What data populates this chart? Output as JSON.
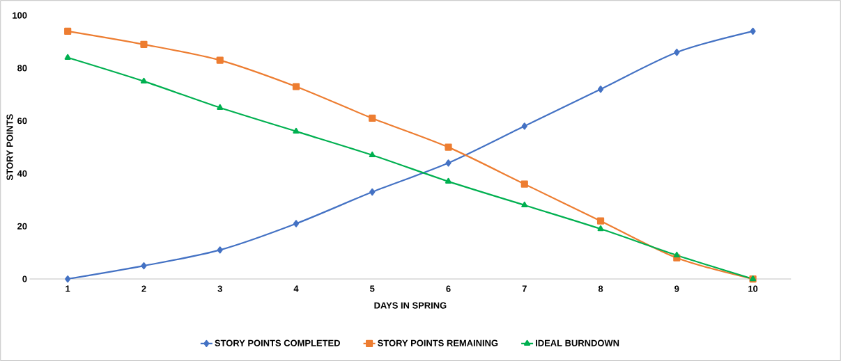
{
  "chart_data": {
    "type": "line",
    "xlabel": "DAYS IN SPRING",
    "ylabel": "STORY POINTS",
    "categories": [
      "1",
      "2",
      "3",
      "4",
      "5",
      "6",
      "7",
      "8",
      "9",
      "10"
    ],
    "series": [
      {
        "name": "STORY POINTS COMPLETED",
        "color": "#4472c4",
        "marker": "diamond",
        "values": [
          0,
          5,
          11,
          21,
          33,
          44,
          58,
          72,
          86,
          94
        ]
      },
      {
        "name": "STORY POINTS REMAINING",
        "color": "#ed7d31",
        "marker": "square",
        "values": [
          94,
          89,
          83,
          73,
          61,
          50,
          36,
          22,
          8,
          0
        ]
      },
      {
        "name": "IDEAL BURNDOWN",
        "color": "#00b050",
        "marker": "triangle",
        "values": [
          84,
          75,
          65,
          56,
          47,
          37,
          28,
          19,
          9,
          0
        ]
      }
    ],
    "ylim": [
      0,
      100
    ],
    "yticks": [
      0,
      20,
      40,
      60,
      80,
      100
    ],
    "grid": false,
    "legend": "bottom",
    "line_style": "solid"
  }
}
